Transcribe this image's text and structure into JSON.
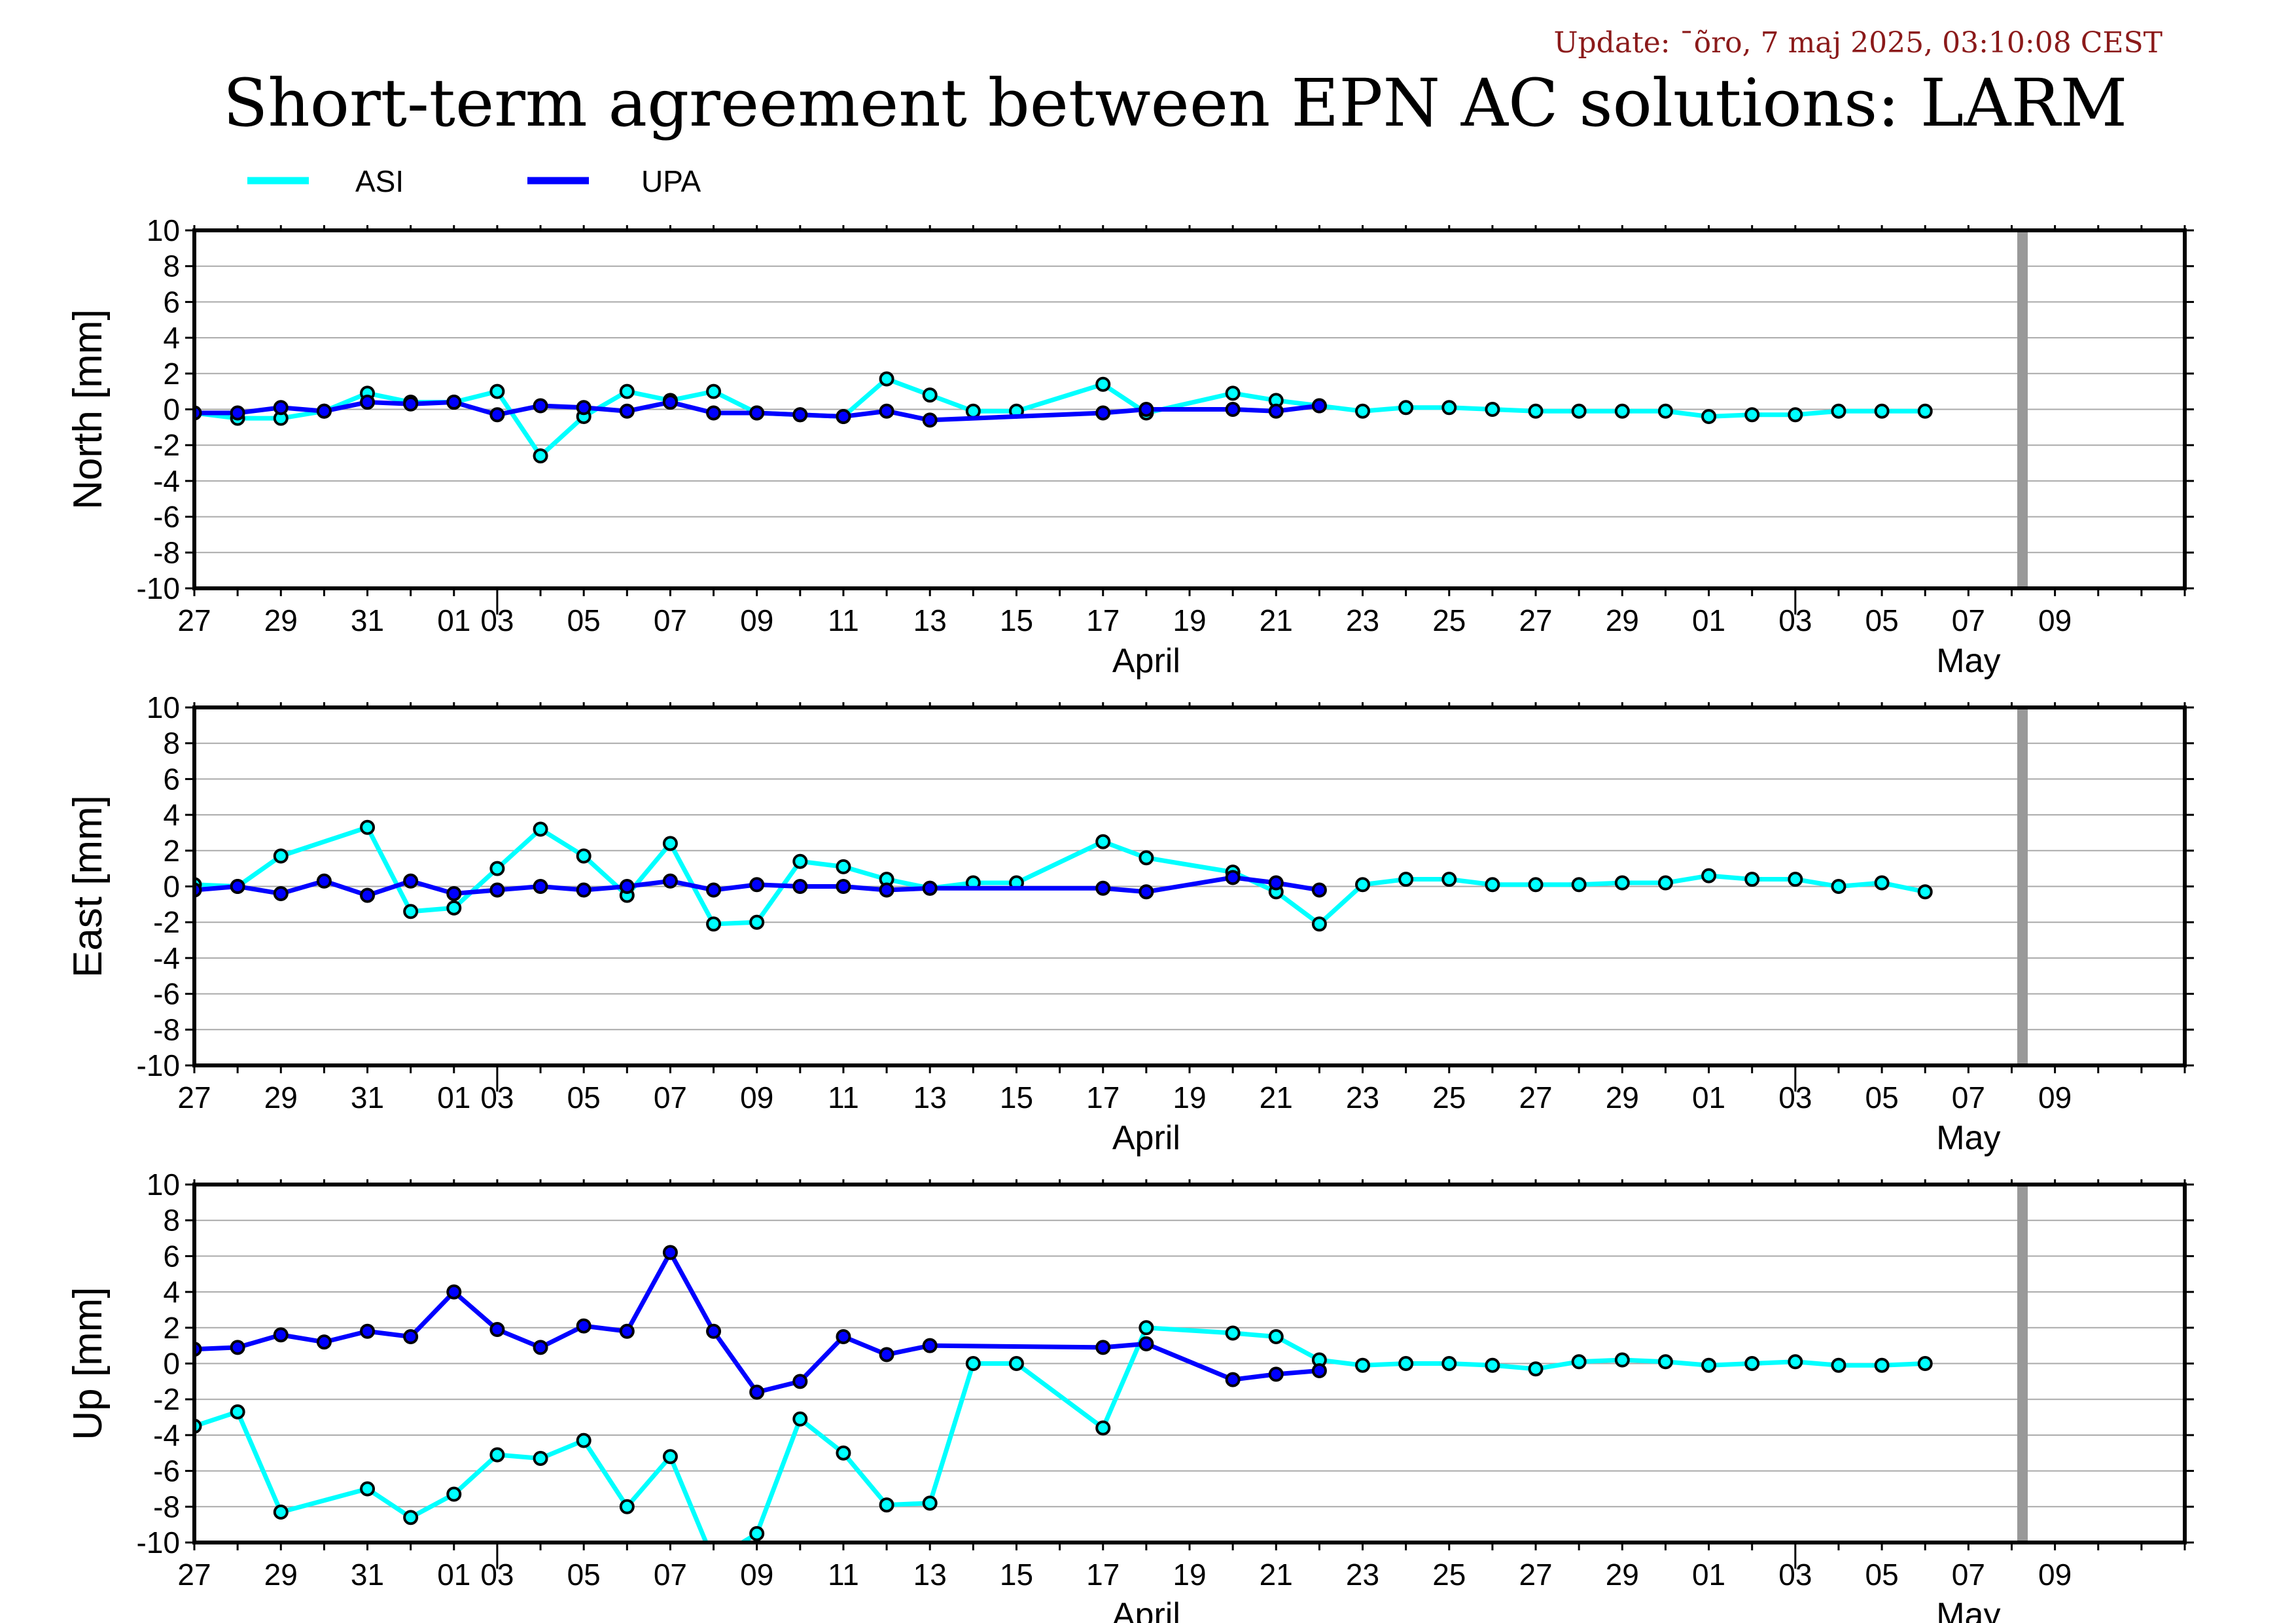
{
  "header": {
    "update": "Update: ¯õro, 7 maj 2025, 03:10:08 CEST",
    "title": "Short-term agreement between EPN AC solutions: LARM"
  },
  "legend": [
    {
      "name": "ASI",
      "color": "#00ffff"
    },
    {
      "name": "UPA",
      "color": "#0000ff"
    }
  ],
  "x_axis": {
    "tick_labels": [
      "27",
      "29",
      "31",
      "01",
      "03",
      "05",
      "07",
      "09",
      "11",
      "13",
      "15",
      "17",
      "19",
      "21",
      "23",
      "25",
      "27",
      "29",
      "01",
      "03",
      "05",
      "07",
      "09"
    ],
    "months": [
      "April",
      "May"
    ]
  },
  "y_axis": {
    "tick_labels": [
      "10",
      "8",
      "6",
      "4",
      "2",
      "0",
      "-2",
      "-4",
      "-6",
      "-8",
      "-10"
    ]
  },
  "chart_data": [
    {
      "type": "line",
      "ylabel": "North [mm]",
      "ylim": [
        -10,
        10
      ],
      "xlim": [
        "2025-03-25",
        "2025-05-10"
      ],
      "marker_date": "2025-05-06",
      "series": [
        {
          "name": "ASI",
          "points": [
            [
              "2025-03-25",
              -0.2
            ],
            [
              "2025-03-26",
              -0.5
            ],
            [
              "2025-03-27",
              -0.5
            ],
            [
              "2025-03-28",
              -0.1
            ],
            [
              "2025-03-29",
              0.9
            ],
            [
              "2025-03-30",
              0.4
            ],
            [
              "2025-03-31",
              0.4
            ],
            [
              "2025-04-01",
              1.0
            ],
            [
              "2025-04-02",
              -2.6
            ],
            [
              "2025-04-03",
              -0.4
            ],
            [
              "2025-04-04",
              1.0
            ],
            [
              "2025-04-05",
              0.5
            ],
            [
              "2025-04-06",
              1.0
            ],
            [
              "2025-04-07",
              -0.2
            ],
            [
              "2025-04-08",
              -0.3
            ],
            [
              "2025-04-09",
              -0.4
            ],
            [
              "2025-04-10",
              1.7
            ],
            [
              "2025-04-11",
              0.8
            ],
            [
              "2025-04-12",
              -0.1
            ],
            [
              "2025-04-13",
              -0.1
            ],
            [
              "2025-04-15",
              1.4
            ],
            [
              "2025-04-16",
              -0.2
            ],
            [
              "2025-04-18",
              0.9
            ],
            [
              "2025-04-19",
              0.5
            ],
            [
              "2025-04-20",
              0.2
            ],
            [
              "2025-04-21",
              -0.1
            ],
            [
              "2025-04-22",
              0.1
            ],
            [
              "2025-04-23",
              0.1
            ],
            [
              "2025-04-24",
              0.0
            ],
            [
              "2025-04-25",
              -0.1
            ],
            [
              "2025-04-26",
              -0.1
            ],
            [
              "2025-04-27",
              -0.1
            ],
            [
              "2025-04-28",
              -0.1
            ],
            [
              "2025-04-29",
              -0.4
            ],
            [
              "2025-04-30",
              -0.3
            ],
            [
              "2025-05-01",
              -0.3
            ],
            [
              "2025-05-02",
              -0.1
            ],
            [
              "2025-05-03",
              -0.1
            ],
            [
              "2025-05-04",
              -0.1
            ]
          ]
        },
        {
          "name": "UPA",
          "points": [
            [
              "2025-03-25",
              -0.2
            ],
            [
              "2025-03-26",
              -0.2
            ],
            [
              "2025-03-27",
              0.1
            ],
            [
              "2025-03-28",
              -0.1
            ],
            [
              "2025-03-29",
              0.4
            ],
            [
              "2025-03-30",
              0.3
            ],
            [
              "2025-03-31",
              0.4
            ],
            [
              "2025-04-01",
              -0.3
            ],
            [
              "2025-04-02",
              0.2
            ],
            [
              "2025-04-03",
              0.1
            ],
            [
              "2025-04-04",
              -0.1
            ],
            [
              "2025-04-05",
              0.4
            ],
            [
              "2025-04-06",
              -0.2
            ],
            [
              "2025-04-07",
              -0.2
            ],
            [
              "2025-04-08",
              -0.3
            ],
            [
              "2025-04-09",
              -0.4
            ],
            [
              "2025-04-10",
              -0.1
            ],
            [
              "2025-04-11",
              -0.6
            ],
            [
              "2025-04-15",
              -0.2
            ],
            [
              "2025-04-16",
              0.0
            ],
            [
              "2025-04-18",
              0.0
            ],
            [
              "2025-04-19",
              -0.1
            ],
            [
              "2025-04-20",
              0.2
            ]
          ]
        }
      ]
    },
    {
      "type": "line",
      "ylabel": "East [mm]",
      "ylim": [
        -10,
        10
      ],
      "xlim": [
        "2025-03-25",
        "2025-05-10"
      ],
      "marker_date": "2025-05-06",
      "series": [
        {
          "name": "ASI",
          "points": [
            [
              "2025-03-25",
              0.1
            ],
            [
              "2025-03-26",
              0.0
            ],
            [
              "2025-03-27",
              1.7
            ],
            [
              "2025-03-29",
              3.3
            ],
            [
              "2025-03-30",
              -1.4
            ],
            [
              "2025-03-31",
              -1.2
            ],
            [
              "2025-04-01",
              1.0
            ],
            [
              "2025-04-02",
              3.2
            ],
            [
              "2025-04-03",
              1.7
            ],
            [
              "2025-04-04",
              -0.5
            ],
            [
              "2025-04-05",
              2.4
            ],
            [
              "2025-04-06",
              -2.1
            ],
            [
              "2025-04-07",
              -2.0
            ],
            [
              "2025-04-08",
              1.4
            ],
            [
              "2025-04-09",
              1.1
            ],
            [
              "2025-04-10",
              0.4
            ],
            [
              "2025-04-11",
              -0.1
            ],
            [
              "2025-04-12",
              0.2
            ],
            [
              "2025-04-13",
              0.2
            ],
            [
              "2025-04-15",
              2.5
            ],
            [
              "2025-04-16",
              1.6
            ],
            [
              "2025-04-18",
              0.8
            ],
            [
              "2025-04-19",
              -0.3
            ],
            [
              "2025-04-20",
              -2.1
            ],
            [
              "2025-04-21",
              0.1
            ],
            [
              "2025-04-22",
              0.4
            ],
            [
              "2025-04-23",
              0.4
            ],
            [
              "2025-04-24",
              0.1
            ],
            [
              "2025-04-25",
              0.1
            ],
            [
              "2025-04-26",
              0.1
            ],
            [
              "2025-04-27",
              0.2
            ],
            [
              "2025-04-28",
              0.2
            ],
            [
              "2025-04-29",
              0.6
            ],
            [
              "2025-04-30",
              0.4
            ],
            [
              "2025-05-01",
              0.4
            ],
            [
              "2025-05-02",
              0.0
            ],
            [
              "2025-05-03",
              0.2
            ],
            [
              "2025-05-04",
              -0.3
            ]
          ]
        },
        {
          "name": "UPA",
          "points": [
            [
              "2025-03-25",
              -0.2
            ],
            [
              "2025-03-26",
              0.0
            ],
            [
              "2025-03-27",
              -0.4
            ],
            [
              "2025-03-28",
              0.3
            ],
            [
              "2025-03-29",
              -0.5
            ],
            [
              "2025-03-30",
              0.3
            ],
            [
              "2025-03-31",
              -0.4
            ],
            [
              "2025-04-01",
              -0.2
            ],
            [
              "2025-04-02",
              0.0
            ],
            [
              "2025-04-03",
              -0.2
            ],
            [
              "2025-04-04",
              0.0
            ],
            [
              "2025-04-05",
              0.3
            ],
            [
              "2025-04-06",
              -0.2
            ],
            [
              "2025-04-07",
              0.1
            ],
            [
              "2025-04-08",
              0.0
            ],
            [
              "2025-04-09",
              0.0
            ],
            [
              "2025-04-10",
              -0.2
            ],
            [
              "2025-04-11",
              -0.1
            ],
            [
              "2025-04-15",
              -0.1
            ],
            [
              "2025-04-16",
              -0.3
            ],
            [
              "2025-04-18",
              0.5
            ],
            [
              "2025-04-19",
              0.2
            ],
            [
              "2025-04-20",
              -0.2
            ]
          ]
        }
      ]
    },
    {
      "type": "line",
      "ylabel": "Up [mm]",
      "ylim": [
        -10,
        10
      ],
      "xlim": [
        "2025-03-25",
        "2025-05-10"
      ],
      "marker_date": "2025-05-06",
      "series": [
        {
          "name": "ASI",
          "points": [
            [
              "2025-03-25",
              -3.5
            ],
            [
              "2025-03-26",
              -2.7
            ],
            [
              "2025-03-27",
              -8.3
            ],
            [
              "2025-03-29",
              -7.0
            ],
            [
              "2025-03-30",
              -8.6
            ],
            [
              "2025-03-31",
              -7.3
            ],
            [
              "2025-04-01",
              -5.1
            ],
            [
              "2025-04-02",
              -5.3
            ],
            [
              "2025-04-03",
              -4.3
            ],
            [
              "2025-04-04",
              -8.0
            ],
            [
              "2025-04-05",
              -5.2
            ],
            [
              "2025-04-06",
              -11.0
            ],
            [
              "2025-04-07",
              -9.5
            ],
            [
              "2025-04-08",
              -3.1
            ],
            [
              "2025-04-09",
              -5.0
            ],
            [
              "2025-04-10",
              -7.9
            ],
            [
              "2025-04-11",
              -7.8
            ],
            [
              "2025-04-12",
              0.0
            ],
            [
              "2025-04-13",
              0.0
            ],
            [
              "2025-04-15",
              -3.6
            ],
            [
              "2025-04-16",
              2.0
            ],
            [
              "2025-04-18",
              1.7
            ],
            [
              "2025-04-19",
              1.5
            ],
            [
              "2025-04-20",
              0.2
            ],
            [
              "2025-04-21",
              -0.1
            ],
            [
              "2025-04-22",
              0.0
            ],
            [
              "2025-04-23",
              0.0
            ],
            [
              "2025-04-24",
              -0.1
            ],
            [
              "2025-04-25",
              -0.3
            ],
            [
              "2025-04-26",
              0.1
            ],
            [
              "2025-04-27",
              0.2
            ],
            [
              "2025-04-28",
              0.1
            ],
            [
              "2025-04-29",
              -0.1
            ],
            [
              "2025-04-30",
              0.0
            ],
            [
              "2025-05-01",
              0.1
            ],
            [
              "2025-05-02",
              -0.1
            ],
            [
              "2025-05-03",
              -0.1
            ],
            [
              "2025-05-04",
              0.0
            ]
          ]
        },
        {
          "name": "UPA",
          "points": [
            [
              "2025-03-25",
              0.8
            ],
            [
              "2025-03-26",
              0.9
            ],
            [
              "2025-03-27",
              1.6
            ],
            [
              "2025-03-28",
              1.2
            ],
            [
              "2025-03-29",
              1.8
            ],
            [
              "2025-03-30",
              1.5
            ],
            [
              "2025-03-31",
              4.0
            ],
            [
              "2025-04-01",
              1.9
            ],
            [
              "2025-04-02",
              0.9
            ],
            [
              "2025-04-03",
              2.1
            ],
            [
              "2025-04-04",
              1.8
            ],
            [
              "2025-04-05",
              6.2
            ],
            [
              "2025-04-06",
              1.8
            ],
            [
              "2025-04-07",
              -1.6
            ],
            [
              "2025-04-08",
              -1.0
            ],
            [
              "2025-04-09",
              1.5
            ],
            [
              "2025-04-10",
              0.5
            ],
            [
              "2025-04-11",
              1.0
            ],
            [
              "2025-04-15",
              0.9
            ],
            [
              "2025-04-16",
              1.1
            ],
            [
              "2025-04-18",
              -0.9
            ],
            [
              "2025-04-19",
              -0.6
            ],
            [
              "2025-04-20",
              -0.4
            ]
          ]
        }
      ]
    }
  ]
}
